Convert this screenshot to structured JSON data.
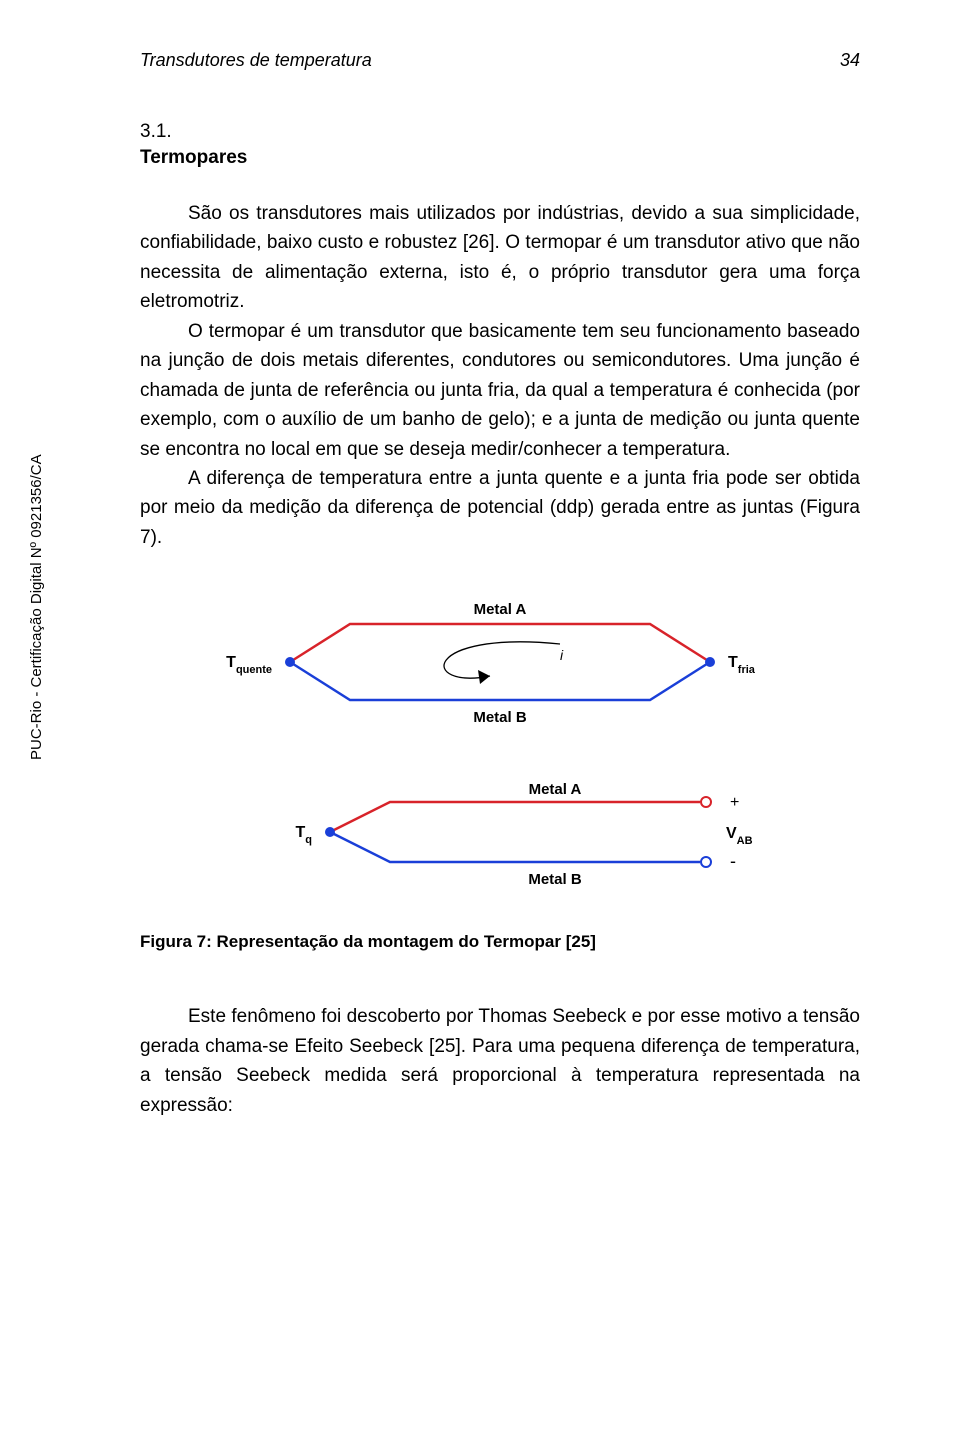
{
  "header": {
    "running_title": "Transdutores de temperatura",
    "page_number": "34"
  },
  "section": {
    "number": "3.1.",
    "title": "Termopares"
  },
  "paragraphs": {
    "p1": "São os transdutores mais utilizados por indústrias, devido a sua simplicidade, confiabilidade, baixo custo e robustez [26]. O termopar é um transdutor ativo que não necessita de alimentação externa, isto é, o próprio transdutor gera uma força eletromotriz.",
    "p2": "O termopar é um transdutor que basicamente tem seu funcionamento baseado na junção de dois metais diferentes, condutores ou semicondutores. Uma junção é chamada de junta de referência ou junta fria, da qual a temperatura é conhecida (por exemplo, com o auxílio de um banho de gelo); e a junta de medição ou junta quente se encontra no local em que se deseja medir/conhecer a temperatura.",
    "p3": "A diferença de temperatura entre a junta quente e a junta fria pode ser obtida por meio da medição da diferença de potencial (ddp) gerada entre as juntas (Figura 7).",
    "p4": "Este fenômeno foi descoberto por Thomas Seebeck e por esse motivo a tensão gerada chama-se Efeito Seebeck [25]. Para uma pequena diferença de temperatura, a tensão Seebeck medida será proporcional à temperatura representada na expressão:"
  },
  "figure": {
    "caption": "Figura 7: Representação da montagem do Termopar [25]",
    "labels": {
      "metal_a_top": "Metal A",
      "metal_b_top": "Metal B",
      "metal_a_bot": "Metal A",
      "metal_b_bot": "Metal B",
      "t_quente": "T",
      "t_quente_sub": "quente",
      "t_fria": "T",
      "t_fria_sub": "fria",
      "t_q": "T",
      "t_q_sub": "q",
      "v_ab": "V",
      "v_ab_sub": "AB",
      "plus": "+",
      "minus": "-",
      "current": "i"
    },
    "colors": {
      "metal_a": "#d8232a",
      "metal_b": "#1a3fd8",
      "node_fill": "#1a3fd8",
      "open_terminal_stroke": "#d8232a",
      "open_terminal_stroke2": "#1a3fd8",
      "text": "#000000",
      "arrow": "#000000"
    },
    "stroke_width": 2.5,
    "node_radius": 5,
    "terminal_radius": 5
  },
  "side_label": "PUC-Rio - Certificação Digital Nº 0921356/CA"
}
